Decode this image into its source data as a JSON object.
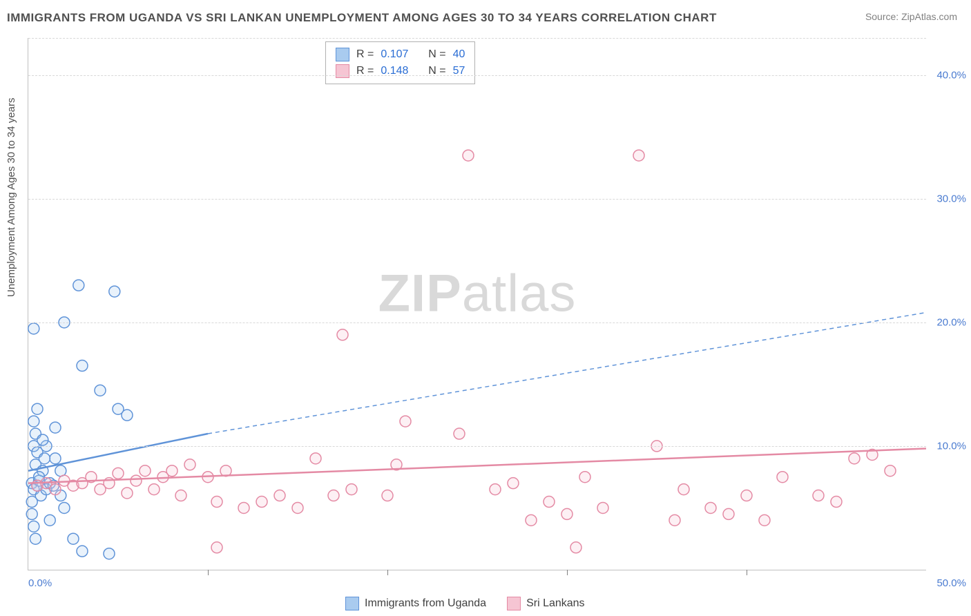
{
  "title": "IMMIGRANTS FROM UGANDA VS SRI LANKAN UNEMPLOYMENT AMONG AGES 30 TO 34 YEARS CORRELATION CHART",
  "source_label": "Source: ",
  "source_value": "ZipAtlas.com",
  "y_axis_label": "Unemployment Among Ages 30 to 34 years",
  "watermark_prefix": "ZIP",
  "watermark_suffix": "atlas",
  "chart": {
    "type": "scatter",
    "xlim": [
      0,
      50
    ],
    "ylim": [
      0,
      43
    ],
    "y_ticks": [
      10,
      20,
      30,
      40
    ],
    "y_tick_labels": [
      "10.0%",
      "20.0%",
      "30.0%",
      "40.0%"
    ],
    "x_tick_positions": [
      0,
      10,
      20,
      30,
      40,
      50
    ],
    "x_left_label": "0.0%",
    "x_right_label": "50.0%",
    "grid_color": "#d8d8d8",
    "background_color": "#ffffff",
    "marker_radius": 8,
    "marker_stroke_width": 1.5,
    "marker_fill_opacity": 0.25,
    "series": [
      {
        "name": "Immigrants from Uganda",
        "label": "Immigrants from Uganda",
        "color_stroke": "#5f93d8",
        "color_fill": "#a9cbef",
        "R": "0.107",
        "N": "40",
        "trend_start": [
          0,
          8.0
        ],
        "trend_end_solid": [
          10,
          11.0
        ],
        "trend_end_dash": [
          50,
          20.8
        ],
        "points": [
          [
            0.2,
            7.0
          ],
          [
            0.3,
            6.5
          ],
          [
            0.4,
            8.5
          ],
          [
            0.3,
            10.0
          ],
          [
            0.4,
            11.0
          ],
          [
            0.3,
            12.0
          ],
          [
            0.5,
            13.0
          ],
          [
            0.2,
            5.5
          ],
          [
            0.2,
            4.5
          ],
          [
            0.3,
            3.5
          ],
          [
            0.4,
            2.5
          ],
          [
            0.6,
            7.2
          ],
          [
            0.7,
            6.0
          ],
          [
            0.8,
            8.0
          ],
          [
            0.5,
            9.5
          ],
          [
            1.0,
            6.5
          ],
          [
            1.2,
            7.0
          ],
          [
            1.4,
            6.8
          ],
          [
            1.0,
            10.0
          ],
          [
            1.5,
            9.0
          ],
          [
            1.8,
            8.0
          ],
          [
            1.5,
            11.5
          ],
          [
            2.0,
            20.0
          ],
          [
            0.3,
            19.5
          ],
          [
            2.8,
            23.0
          ],
          [
            4.8,
            22.5
          ],
          [
            3.0,
            16.5
          ],
          [
            4.0,
            14.5
          ],
          [
            5.0,
            13.0
          ],
          [
            5.5,
            12.5
          ],
          [
            1.2,
            4.0
          ],
          [
            2.0,
            5.0
          ],
          [
            1.8,
            6.0
          ],
          [
            3.0,
            1.5
          ],
          [
            4.5,
            1.3
          ],
          [
            2.5,
            2.5
          ],
          [
            0.8,
            10.5
          ],
          [
            0.5,
            6.8
          ],
          [
            0.6,
            7.5
          ],
          [
            0.9,
            9.0
          ]
        ]
      },
      {
        "name": "Sri Lankans",
        "label": "Sri Lankans",
        "color_stroke": "#e48aa4",
        "color_fill": "#f6c5d3",
        "R": "0.148",
        "N": "57",
        "trend_start": [
          0,
          7.0
        ],
        "trend_end_solid": [
          50,
          9.8
        ],
        "trend_end_dash": null,
        "points": [
          [
            0.5,
            6.8
          ],
          [
            1.0,
            7.0
          ],
          [
            1.5,
            6.5
          ],
          [
            2.0,
            7.2
          ],
          [
            2.5,
            6.8
          ],
          [
            3.0,
            7.0
          ],
          [
            3.5,
            7.5
          ],
          [
            4.0,
            6.5
          ],
          [
            4.5,
            7.0
          ],
          [
            5.0,
            7.8
          ],
          [
            5.5,
            6.2
          ],
          [
            6.0,
            7.2
          ],
          [
            6.5,
            8.0
          ],
          [
            7.0,
            6.5
          ],
          [
            7.5,
            7.5
          ],
          [
            8.0,
            8.0
          ],
          [
            8.5,
            6.0
          ],
          [
            9.0,
            8.5
          ],
          [
            10.0,
            7.5
          ],
          [
            10.5,
            5.5
          ],
          [
            11.0,
            8.0
          ],
          [
            12.0,
            5.0
          ],
          [
            13.0,
            5.5
          ],
          [
            14.0,
            6.0
          ],
          [
            15.0,
            5.0
          ],
          [
            16.0,
            9.0
          ],
          [
            17.0,
            6.0
          ],
          [
            18.0,
            6.5
          ],
          [
            20.0,
            6.0
          ],
          [
            21.0,
            12.0
          ],
          [
            20.5,
            8.5
          ],
          [
            17.5,
            19.0
          ],
          [
            24.0,
            11.0
          ],
          [
            24.5,
            33.5
          ],
          [
            26.0,
            6.5
          ],
          [
            27.0,
            7.0
          ],
          [
            28.0,
            4.0
          ],
          [
            29.0,
            5.5
          ],
          [
            30.0,
            4.5
          ],
          [
            31.0,
            7.5
          ],
          [
            32.0,
            5.0
          ],
          [
            34.0,
            33.5
          ],
          [
            35.0,
            10.0
          ],
          [
            36.0,
            4.0
          ],
          [
            36.5,
            6.5
          ],
          [
            38.0,
            5.0
          ],
          [
            39.0,
            4.5
          ],
          [
            40.0,
            6.0
          ],
          [
            41.0,
            4.0
          ],
          [
            42.0,
            7.5
          ],
          [
            44.0,
            6.0
          ],
          [
            10.5,
            1.8
          ],
          [
            45.0,
            5.5
          ],
          [
            46.0,
            9.0
          ],
          [
            47.0,
            9.3
          ],
          [
            48.0,
            8.0
          ],
          [
            30.5,
            1.8
          ]
        ]
      }
    ]
  },
  "legend_corr_labels": {
    "R": "R =",
    "N": "N ="
  }
}
